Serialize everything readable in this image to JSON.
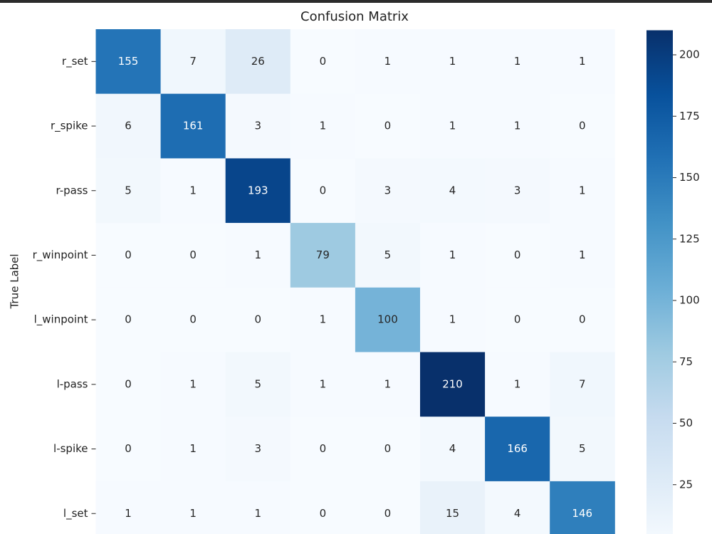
{
  "chart_data": {
    "type": "heatmap",
    "title": "Confusion Matrix",
    "ylabel": "True Label",
    "categories": [
      "r_set",
      "r_spike",
      "r-pass",
      "r_winpoint",
      "l_winpoint",
      "l-pass",
      "l-spike",
      "l_set"
    ],
    "values": [
      [
        155,
        7,
        26,
        0,
        1,
        1,
        1,
        1
      ],
      [
        6,
        161,
        3,
        1,
        0,
        1,
        1,
        0
      ],
      [
        5,
        1,
        193,
        0,
        3,
        4,
        3,
        1
      ],
      [
        0,
        0,
        1,
        79,
        5,
        1,
        0,
        1
      ],
      [
        0,
        0,
        0,
        1,
        100,
        1,
        0,
        0
      ],
      [
        0,
        1,
        5,
        1,
        1,
        210,
        1,
        7
      ],
      [
        0,
        1,
        3,
        0,
        0,
        4,
        166,
        5
      ],
      [
        1,
        1,
        1,
        0,
        0,
        15,
        4,
        146
      ]
    ],
    "colormap": [
      "#f7fbff",
      "#deebf7",
      "#c6dbef",
      "#9ecae1",
      "#6baed6",
      "#4292c6",
      "#2171b5",
      "#08519c",
      "#08306b"
    ],
    "clim": [
      0,
      210
    ],
    "cticks": [
      25,
      50,
      75,
      100,
      125,
      150,
      175,
      200
    ]
  }
}
